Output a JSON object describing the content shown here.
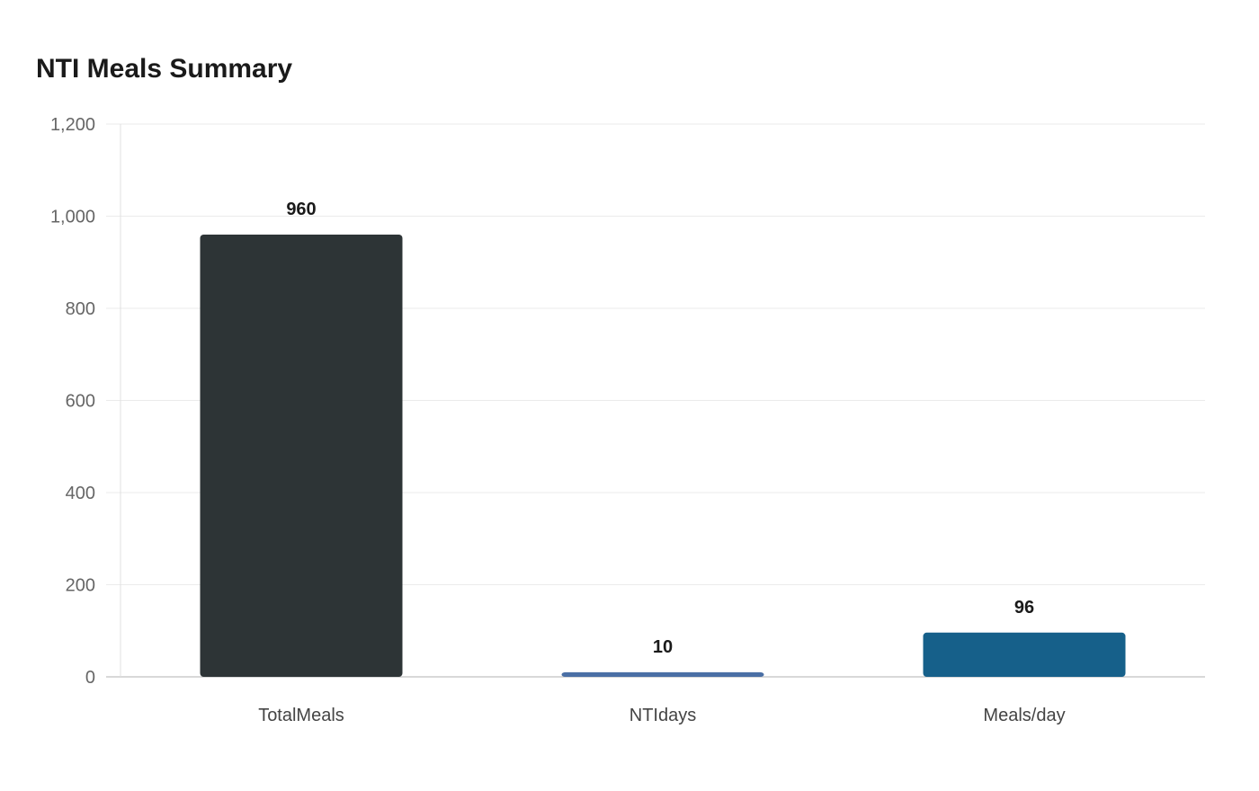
{
  "chart_data": {
    "type": "bar",
    "title": "NTI Meals Summary",
    "categories": [
      "TotalMeals",
      "NTIdays",
      "Meals/day"
    ],
    "values": [
      960,
      10,
      96
    ],
    "data_labels": [
      "960",
      "10",
      "96"
    ],
    "colors": [
      "#2d3436",
      "#4a6fa5",
      "#16608a"
    ],
    "ylim": [
      0,
      1200
    ],
    "yticks": [
      0,
      200,
      400,
      600,
      800,
      1000,
      1200
    ],
    "ytick_labels": [
      "0",
      "200",
      "400",
      "600",
      "800",
      "1,000",
      "1,200"
    ],
    "grid": true,
    "legend": "none"
  }
}
